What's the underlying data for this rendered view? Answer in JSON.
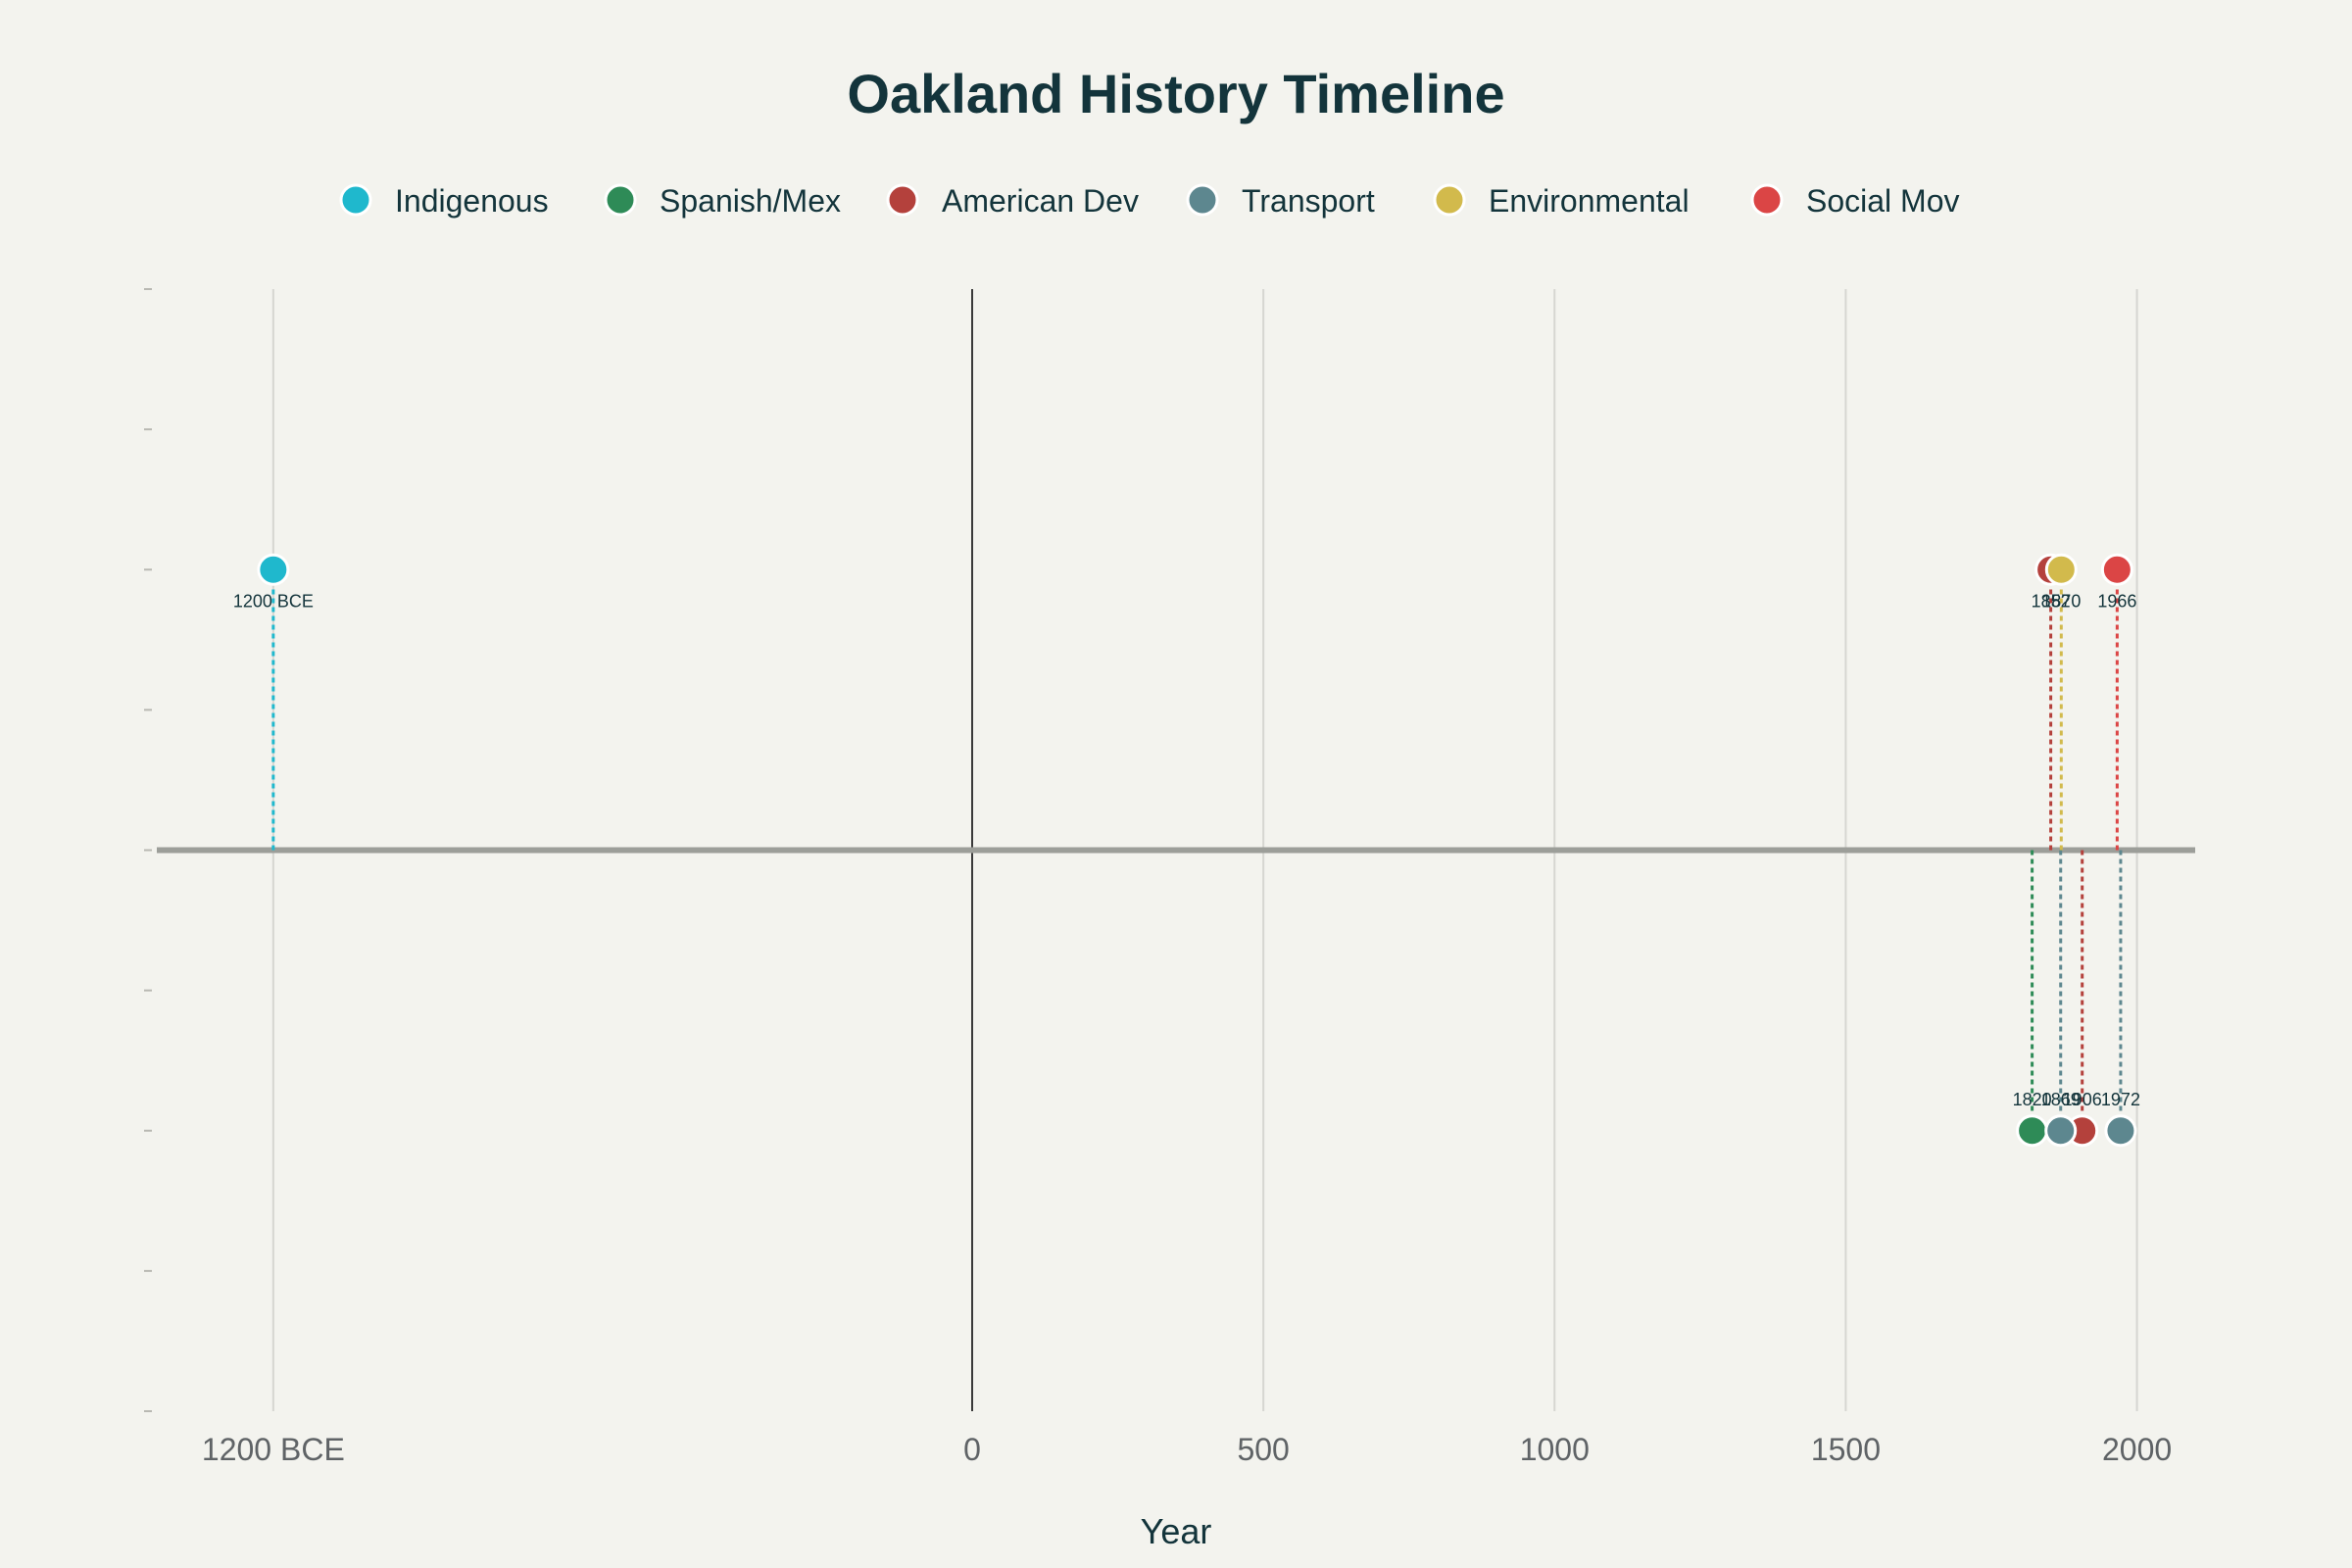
{
  "chart_data": {
    "type": "scatter",
    "title": "Oakland History Timeline",
    "xlabel": "Year",
    "ylabel": "",
    "xlim": [
      -1400,
      2100
    ],
    "ylim": [
      -2,
      2
    ],
    "grid": true,
    "legend_position": "top-center",
    "x_ticks": [
      {
        "value": -1200,
        "label": "1200 BCE"
      },
      {
        "value": 0,
        "label": "0"
      },
      {
        "value": 500,
        "label": "500"
      },
      {
        "value": 1000,
        "label": "1000"
      },
      {
        "value": 1500,
        "label": "1500"
      },
      {
        "value": 2000,
        "label": "2000"
      }
    ],
    "series": [
      {
        "name": "Indigenous",
        "color": "#1fb8cd",
        "points": [
          {
            "x": -1200,
            "y": 1,
            "label": "1200 BCE"
          }
        ]
      },
      {
        "name": "Spanish/Mex",
        "color": "#2e8b57",
        "points": [
          {
            "x": 1820,
            "y": -1,
            "label": "1820"
          }
        ]
      },
      {
        "name": "American Dev",
        "color": "#b4413c",
        "points": [
          {
            "x": 1852,
            "y": 1,
            "label": "1852"
          },
          {
            "x": 1906,
            "y": -1,
            "label": "1906"
          }
        ]
      },
      {
        "name": "Transport",
        "color": "#5d878f",
        "points": [
          {
            "x": 1869,
            "y": -1,
            "label": "1869"
          },
          {
            "x": 1972,
            "y": -1,
            "label": "1972"
          }
        ]
      },
      {
        "name": "Environmental",
        "color": "#d2ba4c",
        "points": [
          {
            "x": 1870,
            "y": 1,
            "label": "1870"
          }
        ]
      },
      {
        "name": "Social Mov",
        "color": "#db4545",
        "points": [
          {
            "x": 1966,
            "y": 1,
            "label": "1966"
          }
        ]
      }
    ]
  }
}
